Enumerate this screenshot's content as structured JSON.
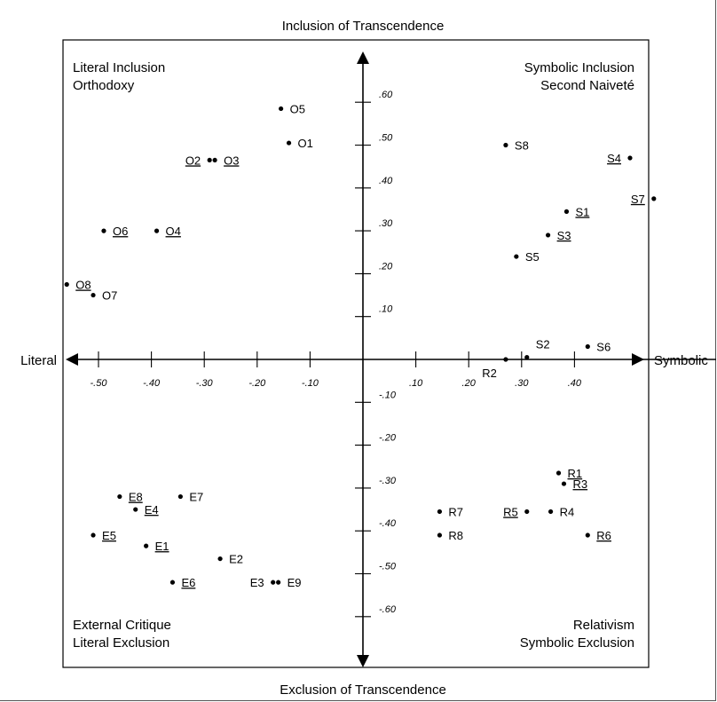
{
  "chart_data": {
    "type": "scatter",
    "axes": {
      "top_title": "Inclusion of Transcendence",
      "bottom_title": "Exclusion of Transcendence",
      "left_title": "Literal",
      "right_title": "Symbolic",
      "xlim": [
        -0.56,
        0.56
      ],
      "ylim": [
        -0.66,
        0.66
      ],
      "x_ticks": [
        {
          "v": -0.5,
          "label": "-.50"
        },
        {
          "v": -0.4,
          "label": "-.40"
        },
        {
          "v": -0.3,
          "label": "-.30"
        },
        {
          "v": -0.2,
          "label": "-.20"
        },
        {
          "v": -0.1,
          "label": "-.10"
        },
        {
          "v": 0.1,
          "label": ".10"
        },
        {
          "v": 0.2,
          "label": ".20"
        },
        {
          "v": 0.3,
          "label": ".30"
        },
        {
          "v": 0.4,
          "label": ".40"
        }
      ],
      "y_ticks": [
        {
          "v": 0.6,
          "label": ".60"
        },
        {
          "v": 0.5,
          "label": ".50"
        },
        {
          "v": 0.4,
          "label": ".40"
        },
        {
          "v": 0.3,
          "label": ".30"
        },
        {
          "v": 0.2,
          "label": ".20"
        },
        {
          "v": 0.1,
          "label": ".10"
        },
        {
          "v": -0.1,
          "label": "-.10"
        },
        {
          "v": -0.2,
          "label": "-.20"
        },
        {
          "v": -0.3,
          "label": "-.30"
        },
        {
          "v": -0.4,
          "label": "-.40"
        },
        {
          "v": -0.5,
          "label": "-.50"
        },
        {
          "v": -0.6,
          "label": "-.60"
        }
      ]
    },
    "quadrants": {
      "top_left": [
        "Literal Inclusion",
        "Orthodoxy"
      ],
      "top_right": [
        "Symbolic Inclusion",
        "Second Naiveté"
      ],
      "bottom_left": [
        "External Critique",
        "Literal Exclusion"
      ],
      "bottom_right": [
        "Relativism",
        "Symbolic Exclusion"
      ]
    },
    "points": [
      {
        "label": "O5",
        "x": -0.155,
        "y": 0.585,
        "underline": false,
        "side": "right"
      },
      {
        "label": "O1",
        "x": -0.14,
        "y": 0.505,
        "underline": false,
        "side": "right"
      },
      {
        "label": "O2",
        "x": -0.29,
        "y": 0.465,
        "underline": true,
        "side": "left"
      },
      {
        "label": "O3",
        "x": -0.28,
        "y": 0.465,
        "underline": true,
        "side": "right"
      },
      {
        "label": "O6",
        "x": -0.49,
        "y": 0.3,
        "underline": true,
        "side": "right"
      },
      {
        "label": "O4",
        "x": -0.39,
        "y": 0.3,
        "underline": true,
        "side": "right"
      },
      {
        "label": "O8",
        "x": -0.56,
        "y": 0.175,
        "underline": true,
        "side": "right"
      },
      {
        "label": "O7",
        "x": -0.51,
        "y": 0.15,
        "underline": false,
        "side": "right"
      },
      {
        "label": "S8",
        "x": 0.27,
        "y": 0.5,
        "underline": false,
        "side": "right"
      },
      {
        "label": "S4",
        "x": 0.505,
        "y": 0.47,
        "underline": true,
        "side": "left"
      },
      {
        "label": "S7",
        "x": 0.55,
        "y": 0.375,
        "underline": true,
        "side": "left"
      },
      {
        "label": "S1",
        "x": 0.385,
        "y": 0.345,
        "underline": true,
        "side": "right"
      },
      {
        "label": "S3",
        "x": 0.35,
        "y": 0.29,
        "underline": true,
        "side": "right"
      },
      {
        "label": "S5",
        "x": 0.29,
        "y": 0.24,
        "underline": false,
        "side": "right"
      },
      {
        "label": "S2",
        "x": 0.31,
        "y": 0.005,
        "underline": false,
        "side": "above"
      },
      {
        "label": "S6",
        "x": 0.425,
        "y": 0.03,
        "underline": false,
        "side": "right"
      },
      {
        "label": "R2",
        "x": 0.27,
        "y": 0.0,
        "underline": false,
        "side": "below-left"
      },
      {
        "label": "R1",
        "x": 0.37,
        "y": -0.265,
        "underline": true,
        "side": "right"
      },
      {
        "label": "R3",
        "x": 0.38,
        "y": -0.29,
        "underline": true,
        "side": "right"
      },
      {
        "label": "R7",
        "x": 0.145,
        "y": -0.355,
        "underline": false,
        "side": "right"
      },
      {
        "label": "R5",
        "x": 0.31,
        "y": -0.355,
        "underline": true,
        "side": "left"
      },
      {
        "label": "R4",
        "x": 0.355,
        "y": -0.355,
        "underline": false,
        "side": "right"
      },
      {
        "label": "R8",
        "x": 0.145,
        "y": -0.41,
        "underline": false,
        "side": "right"
      },
      {
        "label": "R6",
        "x": 0.425,
        "y": -0.41,
        "underline": true,
        "side": "right"
      },
      {
        "label": "E8",
        "x": -0.46,
        "y": -0.32,
        "underline": true,
        "side": "right"
      },
      {
        "label": "E7",
        "x": -0.345,
        "y": -0.32,
        "underline": false,
        "side": "right"
      },
      {
        "label": "E4",
        "x": -0.43,
        "y": -0.35,
        "underline": true,
        "side": "right"
      },
      {
        "label": "E5",
        "x": -0.51,
        "y": -0.41,
        "underline": true,
        "side": "right"
      },
      {
        "label": "E1",
        "x": -0.41,
        "y": -0.435,
        "underline": true,
        "side": "right"
      },
      {
        "label": "E2",
        "x": -0.27,
        "y": -0.465,
        "underline": false,
        "side": "right"
      },
      {
        "label": "E6",
        "x": -0.36,
        "y": -0.52,
        "underline": true,
        "side": "right"
      },
      {
        "label": "E3",
        "x": -0.17,
        "y": -0.52,
        "underline": false,
        "side": "left"
      },
      {
        "label": "E9",
        "x": -0.16,
        "y": -0.52,
        "underline": false,
        "side": "right"
      }
    ]
  }
}
